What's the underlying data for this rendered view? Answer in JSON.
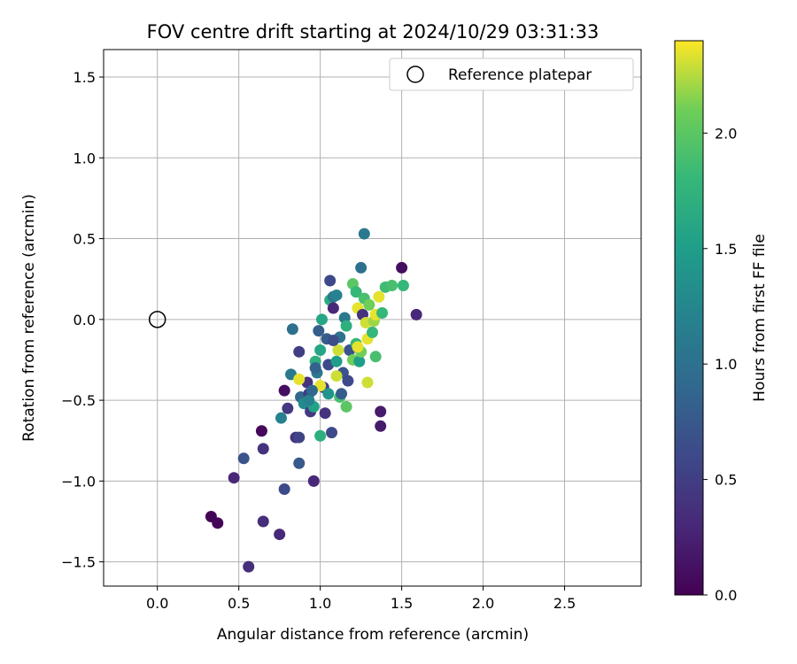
{
  "chart_data": {
    "type": "scatter",
    "title": "FOV centre drift starting at 2024/10/29 03:31:33",
    "xlabel": "Angular distance from reference (arcmin)",
    "ylabel": "Rotation from reference (arcmin)",
    "xlim": [
      -0.33,
      2.97
    ],
    "ylim": [
      -1.65,
      1.67
    ],
    "xticks": [
      "0.0",
      "0.5",
      "1.0",
      "1.5",
      "2.0",
      "2.5"
    ],
    "yticks": [
      "1.5",
      "1.0",
      "0.5",
      "0.0",
      "−0.5",
      "−1.0",
      "−1.5"
    ],
    "grid": true,
    "legend": {
      "position": "top-right",
      "label": "Reference platepar"
    },
    "reference_point": {
      "x": 0.0,
      "y": 0.0
    },
    "colorbar": {
      "label": "Hours from first FF file",
      "colormap": "viridis",
      "range": [
        0.0,
        2.4
      ],
      "ticks": [
        "0.0",
        "0.5",
        "1.0",
        "1.5",
        "2.0"
      ]
    },
    "points": [
      {
        "x": 0.33,
        "y": -1.22,
        "c": 0.02
      },
      {
        "x": 0.37,
        "y": -1.26,
        "c": 0.03
      },
      {
        "x": 0.56,
        "y": -1.53,
        "c": 0.35
      },
      {
        "x": 0.65,
        "y": -1.25,
        "c": 0.35
      },
      {
        "x": 0.75,
        "y": -1.33,
        "c": 0.3
      },
      {
        "x": 0.47,
        "y": -0.98,
        "c": 0.3
      },
      {
        "x": 0.53,
        "y": -0.86,
        "c": 0.7
      },
      {
        "x": 0.64,
        "y": -0.69,
        "c": 0.05
      },
      {
        "x": 0.65,
        "y": -0.8,
        "c": 0.4
      },
      {
        "x": 0.78,
        "y": -1.05,
        "c": 0.6
      },
      {
        "x": 0.87,
        "y": -0.89,
        "c": 0.75
      },
      {
        "x": 0.96,
        "y": -1.0,
        "c": 0.3
      },
      {
        "x": 0.85,
        "y": -0.73,
        "c": 0.4
      },
      {
        "x": 0.87,
        "y": -0.73,
        "c": 0.55
      },
      {
        "x": 1.0,
        "y": -0.72,
        "c": 1.7
      },
      {
        "x": 1.07,
        "y": -0.7,
        "c": 0.6
      },
      {
        "x": 0.76,
        "y": -0.61,
        "c": 1.2
      },
      {
        "x": 0.78,
        "y": -0.44,
        "c": 0.1
      },
      {
        "x": 0.8,
        "y": -0.55,
        "c": 0.45
      },
      {
        "x": 0.82,
        "y": -0.34,
        "c": 1.1
      },
      {
        "x": 0.83,
        "y": -0.06,
        "c": 1.0
      },
      {
        "x": 0.87,
        "y": -0.2,
        "c": 0.5
      },
      {
        "x": 0.88,
        "y": -0.48,
        "c": 0.9
      },
      {
        "x": 0.9,
        "y": -0.52,
        "c": 1.3
      },
      {
        "x": 0.92,
        "y": -0.39,
        "c": 0.4
      },
      {
        "x": 0.93,
        "y": -0.46,
        "c": 0.5
      },
      {
        "x": 0.94,
        "y": -0.57,
        "c": 0.45
      },
      {
        "x": 0.96,
        "y": -0.54,
        "c": 1.55
      },
      {
        "x": 0.97,
        "y": -0.26,
        "c": 1.7
      },
      {
        "x": 0.98,
        "y": -0.33,
        "c": 1.1
      },
      {
        "x": 0.99,
        "y": -0.07,
        "c": 0.8
      },
      {
        "x": 1.0,
        "y": -0.19,
        "c": 1.6
      },
      {
        "x": 1.01,
        "y": -0.0,
        "c": 1.6
      },
      {
        "x": 1.02,
        "y": -0.42,
        "c": 0.5
      },
      {
        "x": 1.03,
        "y": -0.58,
        "c": 0.4
      },
      {
        "x": 1.04,
        "y": -0.12,
        "c": 0.8
      },
      {
        "x": 1.05,
        "y": -0.28,
        "c": 0.6
      },
      {
        "x": 1.06,
        "y": 0.24,
        "c": 0.6
      },
      {
        "x": 1.06,
        "y": 0.12,
        "c": 1.65
      },
      {
        "x": 1.08,
        "y": 0.14,
        "c": 1.1
      },
      {
        "x": 1.08,
        "y": 0.07,
        "c": 0.3
      },
      {
        "x": 1.1,
        "y": -0.26,
        "c": 1.5
      },
      {
        "x": 1.1,
        "y": 0.15,
        "c": 1.2
      },
      {
        "x": 1.12,
        "y": -0.11,
        "c": 1.0
      },
      {
        "x": 1.12,
        "y": -0.48,
        "c": 1.9
      },
      {
        "x": 1.13,
        "y": -0.46,
        "c": 0.8
      },
      {
        "x": 1.14,
        "y": -0.33,
        "c": 0.7
      },
      {
        "x": 1.15,
        "y": 0.01,
        "c": 1.1
      },
      {
        "x": 1.16,
        "y": -0.04,
        "c": 1.7
      },
      {
        "x": 1.16,
        "y": -0.54,
        "c": 2.0
      },
      {
        "x": 1.17,
        "y": -0.38,
        "c": 0.6
      },
      {
        "x": 1.18,
        "y": -0.19,
        "c": 0.7
      },
      {
        "x": 1.2,
        "y": -0.25,
        "c": 2.1
      },
      {
        "x": 1.2,
        "y": 0.22,
        "c": 2.0
      },
      {
        "x": 1.22,
        "y": -0.15,
        "c": 1.8
      },
      {
        "x": 1.22,
        "y": 0.17,
        "c": 1.8
      },
      {
        "x": 1.23,
        "y": 0.07,
        "c": 2.35
      },
      {
        "x": 1.24,
        "y": -0.26,
        "c": 1.5
      },
      {
        "x": 1.25,
        "y": 0.32,
        "c": 1.0
      },
      {
        "x": 1.25,
        "y": -0.2,
        "c": 2.1
      },
      {
        "x": 1.26,
        "y": 0.03,
        "c": 0.4
      },
      {
        "x": 1.27,
        "y": 0.53,
        "c": 1.1
      },
      {
        "x": 1.27,
        "y": 0.13,
        "c": 1.9
      },
      {
        "x": 1.28,
        "y": -0.02,
        "c": 2.3
      },
      {
        "x": 1.29,
        "y": -0.12,
        "c": 2.35
      },
      {
        "x": 1.29,
        "y": -0.39,
        "c": 2.3
      },
      {
        "x": 1.3,
        "y": 0.09,
        "c": 2.1
      },
      {
        "x": 1.32,
        "y": -0.08,
        "c": 1.8
      },
      {
        "x": 1.33,
        "y": -0.01,
        "c": 2.2
      },
      {
        "x": 1.34,
        "y": 0.03,
        "c": 2.35
      },
      {
        "x": 1.34,
        "y": -0.23,
        "c": 1.9
      },
      {
        "x": 1.36,
        "y": 0.14,
        "c": 2.35
      },
      {
        "x": 1.37,
        "y": -0.57,
        "c": 0.2
      },
      {
        "x": 1.37,
        "y": -0.66,
        "c": 0.2
      },
      {
        "x": 1.38,
        "y": 0.04,
        "c": 1.8
      },
      {
        "x": 1.4,
        "y": 0.2,
        "c": 1.85
      },
      {
        "x": 1.44,
        "y": 0.21,
        "c": 1.9
      },
      {
        "x": 1.5,
        "y": 0.32,
        "c": 0.1
      },
      {
        "x": 1.51,
        "y": 0.21,
        "c": 1.8
      },
      {
        "x": 1.59,
        "y": 0.03,
        "c": 0.3
      },
      {
        "x": 0.87,
        "y": -0.37,
        "c": 2.35
      },
      {
        "x": 1.0,
        "y": -0.41,
        "c": 2.35
      },
      {
        "x": 1.1,
        "y": -0.35,
        "c": 2.3
      },
      {
        "x": 1.11,
        "y": -0.19,
        "c": 2.3
      },
      {
        "x": 1.23,
        "y": -0.17,
        "c": 2.35
      },
      {
        "x": 0.93,
        "y": -0.5,
        "c": 1.2
      },
      {
        "x": 0.95,
        "y": -0.44,
        "c": 0.9
      },
      {
        "x": 0.97,
        "y": -0.3,
        "c": 0.85
      },
      {
        "x": 1.05,
        "y": -0.46,
        "c": 1.4
      },
      {
        "x": 1.08,
        "y": -0.13,
        "c": 0.65
      }
    ]
  }
}
